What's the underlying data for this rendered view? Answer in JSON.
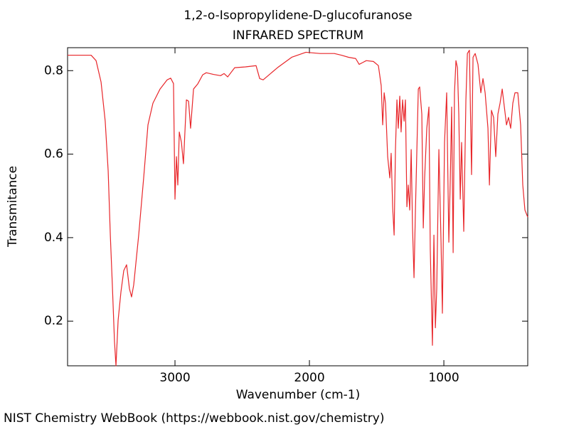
{
  "chart_data": {
    "type": "line",
    "title": "1,2-o-Isopropylidene-D-glucofuranose",
    "subtitle": "INFRARED SPECTRUM",
    "x_label": "Wavenumber (cm-1)",
    "y_label": "Transmitance",
    "xlim": [
      3799,
      376
    ],
    "xticks": [
      3000,
      2000,
      1000
    ],
    "ylim": [
      0.093,
      0.855
    ],
    "yticks": [
      0.2,
      0.4,
      0.6,
      0.8
    ],
    "grid": false,
    "x": [
      3799,
      3693,
      3624,
      3587,
      3550,
      3519,
      3497,
      3481,
      3466,
      3450,
      3439,
      3423,
      3402,
      3381,
      3360,
      3339,
      3323,
      3307,
      3270,
      3233,
      3201,
      3164,
      3111,
      3058,
      3032,
      3011,
      3000,
      2989,
      2979,
      2968,
      2952,
      2937,
      2915,
      2899,
      2884,
      2862,
      2831,
      2794,
      2767,
      2714,
      2661,
      2635,
      2608,
      2556,
      2476,
      2397,
      2370,
      2344,
      2238,
      2132,
      2026,
      1921,
      1815,
      1762,
      1709,
      1656,
      1630,
      1577,
      1524,
      1487,
      1466,
      1455,
      1444,
      1434,
      1418,
      1402,
      1392,
      1381,
      1370,
      1360,
      1349,
      1339,
      1328,
      1318,
      1307,
      1296,
      1286,
      1275,
      1265,
      1254,
      1243,
      1233,
      1222,
      1212,
      1190,
      1180,
      1164,
      1153,
      1143,
      1127,
      1111,
      1101,
      1085,
      1074,
      1063,
      1053,
      1037,
      1021,
      1011,
      995,
      979,
      963,
      952,
      942,
      931,
      921,
      910,
      899,
      889,
      878,
      868,
      852,
      836,
      825,
      810,
      794,
      783,
      767,
      746,
      725,
      709,
      693,
      672,
      661,
      646,
      630,
      614,
      598,
      582,
      566,
      550,
      534,
      519,
      503,
      487,
      471,
      450,
      429,
      413,
      397,
      376
    ],
    "series": [
      {
        "color": "#e8262a",
        "values": [
          0.837,
          0.837,
          0.837,
          0.824,
          0.773,
          0.679,
          0.56,
          0.406,
          0.287,
          0.151,
          0.093,
          0.202,
          0.27,
          0.321,
          0.335,
          0.278,
          0.258,
          0.287,
          0.406,
          0.543,
          0.67,
          0.722,
          0.756,
          0.778,
          0.782,
          0.769,
          0.492,
          0.594,
          0.526,
          0.653,
          0.628,
          0.577,
          0.73,
          0.727,
          0.662,
          0.756,
          0.768,
          0.79,
          0.795,
          0.791,
          0.788,
          0.793,
          0.785,
          0.807,
          0.809,
          0.812,
          0.781,
          0.778,
          0.807,
          0.832,
          0.844,
          0.841,
          0.841,
          0.837,
          0.832,
          0.829,
          0.815,
          0.824,
          0.822,
          0.812,
          0.764,
          0.67,
          0.747,
          0.722,
          0.594,
          0.543,
          0.602,
          0.474,
          0.406,
          0.611,
          0.73,
          0.662,
          0.739,
          0.653,
          0.73,
          0.679,
          0.73,
          0.474,
          0.526,
          0.466,
          0.611,
          0.423,
          0.304,
          0.457,
          0.756,
          0.761,
          0.696,
          0.423,
          0.543,
          0.662,
          0.713,
          0.372,
          0.142,
          0.406,
          0.184,
          0.278,
          0.611,
          0.389,
          0.219,
          0.628,
          0.747,
          0.389,
          0.543,
          0.713,
          0.364,
          0.747,
          0.824,
          0.807,
          0.696,
          0.492,
          0.628,
          0.415,
          0.73,
          0.841,
          0.849,
          0.551,
          0.832,
          0.841,
          0.815,
          0.747,
          0.781,
          0.747,
          0.662,
          0.526,
          0.705,
          0.688,
          0.594,
          0.696,
          0.722,
          0.756,
          0.713,
          0.67,
          0.688,
          0.662,
          0.722,
          0.747,
          0.747,
          0.67,
          0.526,
          0.466,
          0.449
        ]
      }
    ]
  },
  "footer": "NIST Chemistry WebBook (https://webbook.nist.gov/chemistry)"
}
